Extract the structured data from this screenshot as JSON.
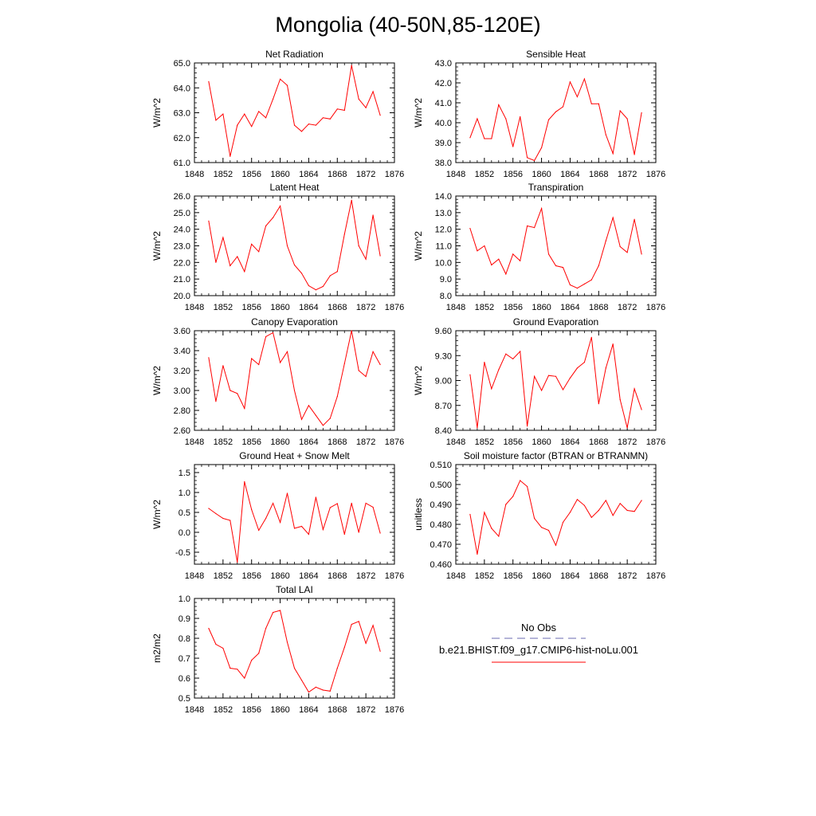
{
  "title": "Mongolia (40-50N,85-120E)",
  "colors": {
    "model": "#ff0000",
    "obs": "#6a6ab0",
    "axis": "#000000"
  },
  "legend": {
    "obs_label": "No Obs",
    "model_label": "b.e21.BHIST.f09_g17.CMIP6-hist-noLu.001"
  },
  "chart_data": [
    {
      "type": "line",
      "title": "Net Radiation",
      "ylabel": "W/m^2",
      "xlim": [
        1848,
        1876
      ],
      "xticks": [
        1848,
        1852,
        1856,
        1860,
        1864,
        1868,
        1872,
        1876
      ],
      "ylim": [
        61.0,
        65.0
      ],
      "yticks": [
        61.0,
        62.0,
        63.0,
        64.0,
        65.0
      ],
      "ytick_labels": [
        "61.0",
        "62.0",
        "63.0",
        "64.0",
        "65.0"
      ],
      "x": [
        1850,
        1851,
        1852,
        1853,
        1854,
        1855,
        1856,
        1857,
        1858,
        1859,
        1860,
        1861,
        1862,
        1863,
        1864,
        1865,
        1866,
        1867,
        1868,
        1869,
        1870,
        1871,
        1872,
        1873,
        1874
      ],
      "series": [
        {
          "values": [
            64.25,
            62.7,
            62.95,
            61.25,
            62.5,
            62.95,
            62.45,
            63.05,
            62.8,
            63.55,
            64.35,
            64.1,
            62.5,
            62.25,
            62.55,
            62.5,
            62.8,
            62.75,
            63.15,
            63.1,
            64.9,
            63.55,
            63.2,
            63.85,
            62.9
          ]
        }
      ],
      "grid": false
    },
    {
      "type": "line",
      "title": "Sensible Heat",
      "ylabel": "W/m^2",
      "xlim": [
        1848,
        1876
      ],
      "xticks": [
        1848,
        1852,
        1856,
        1860,
        1864,
        1868,
        1872,
        1876
      ],
      "ylim": [
        38.0,
        43.0
      ],
      "yticks": [
        38.0,
        39.0,
        40.0,
        41.0,
        42.0,
        43.0
      ],
      "ytick_labels": [
        "38.0",
        "39.0",
        "40.0",
        "41.0",
        "42.0",
        "43.0"
      ],
      "x": [
        1850,
        1851,
        1852,
        1853,
        1854,
        1855,
        1856,
        1857,
        1858,
        1859,
        1860,
        1861,
        1862,
        1863,
        1864,
        1865,
        1866,
        1867,
        1868,
        1869,
        1870,
        1871,
        1872,
        1873,
        1874
      ],
      "series": [
        {
          "values": [
            39.25,
            40.2,
            39.2,
            39.2,
            40.9,
            40.2,
            38.8,
            40.3,
            38.25,
            38.1,
            38.75,
            40.15,
            40.55,
            40.8,
            42.05,
            41.3,
            42.2,
            40.95,
            40.95,
            39.4,
            38.45,
            40.6,
            40.2,
            38.4,
            40.5
          ]
        }
      ],
      "grid": false
    },
    {
      "type": "line",
      "title": "Latent Heat",
      "ylabel": "W/m^2",
      "xlim": [
        1848,
        1876
      ],
      "xticks": [
        1848,
        1852,
        1856,
        1860,
        1864,
        1868,
        1872,
        1876
      ],
      "ylim": [
        20.0,
        26.0
      ],
      "yticks": [
        20.0,
        21.0,
        22.0,
        23.0,
        24.0,
        25.0,
        26.0
      ],
      "ytick_labels": [
        "20.0",
        "21.0",
        "22.0",
        "23.0",
        "24.0",
        "25.0",
        "26.0"
      ],
      "x": [
        1850,
        1851,
        1852,
        1853,
        1854,
        1855,
        1856,
        1857,
        1858,
        1859,
        1860,
        1861,
        1862,
        1863,
        1864,
        1865,
        1866,
        1867,
        1868,
        1869,
        1870,
        1871,
        1872,
        1873,
        1874
      ],
      "series": [
        {
          "values": [
            24.5,
            22.0,
            23.5,
            21.8,
            22.35,
            21.45,
            23.1,
            22.65,
            24.2,
            24.7,
            25.4,
            23.0,
            21.85,
            21.35,
            20.6,
            20.35,
            20.55,
            21.2,
            21.45,
            23.7,
            25.75,
            23.0,
            22.2,
            24.85,
            22.4
          ]
        }
      ],
      "grid": false
    },
    {
      "type": "line",
      "title": "Transpiration",
      "ylabel": "W/m^2",
      "xlim": [
        1848,
        1876
      ],
      "xticks": [
        1848,
        1852,
        1856,
        1860,
        1864,
        1868,
        1872,
        1876
      ],
      "ylim": [
        8.0,
        14.0
      ],
      "yticks": [
        8.0,
        9.0,
        10.0,
        11.0,
        12.0,
        13.0,
        14.0
      ],
      "ytick_labels": [
        "8.0",
        "9.0",
        "10.0",
        "11.0",
        "12.0",
        "13.0",
        "14.0"
      ],
      "x": [
        1850,
        1851,
        1852,
        1853,
        1854,
        1855,
        1856,
        1857,
        1858,
        1859,
        1860,
        1861,
        1862,
        1863,
        1864,
        1865,
        1866,
        1867,
        1868,
        1869,
        1870,
        1871,
        1872,
        1873,
        1874
      ],
      "series": [
        {
          "values": [
            12.05,
            10.7,
            11.0,
            9.85,
            10.2,
            9.3,
            10.5,
            10.1,
            12.2,
            12.1,
            13.25,
            10.5,
            9.8,
            9.7,
            8.65,
            8.45,
            8.7,
            8.95,
            9.8,
            11.3,
            12.7,
            10.95,
            10.6,
            12.6,
            10.5
          ]
        }
      ],
      "grid": false
    },
    {
      "type": "line",
      "title": "Canopy Evaporation",
      "ylabel": "W/m^2",
      "xlim": [
        1848,
        1876
      ],
      "xticks": [
        1848,
        1852,
        1856,
        1860,
        1864,
        1868,
        1872,
        1876
      ],
      "ylim": [
        2.6,
        3.6
      ],
      "yticks": [
        2.6,
        2.8,
        3.0,
        3.2,
        3.4,
        3.6
      ],
      "ytick_labels": [
        "2.60",
        "2.80",
        "3.00",
        "3.20",
        "3.40",
        "3.60"
      ],
      "x": [
        1850,
        1851,
        1852,
        1853,
        1854,
        1855,
        1856,
        1857,
        1858,
        1859,
        1860,
        1861,
        1862,
        1863,
        1864,
        1865,
        1866,
        1867,
        1868,
        1869,
        1870,
        1871,
        1872,
        1873,
        1874
      ],
      "series": [
        {
          "values": [
            3.33,
            2.89,
            3.25,
            3.0,
            2.97,
            2.82,
            3.32,
            3.26,
            3.54,
            3.58,
            3.28,
            3.39,
            3.0,
            2.71,
            2.85,
            2.75,
            2.65,
            2.72,
            2.94,
            3.27,
            3.6,
            3.2,
            3.14,
            3.39,
            3.26
          ]
        }
      ],
      "grid": false
    },
    {
      "type": "line",
      "title": "Ground Evaporation",
      "ylabel": "W/m^2",
      "xlim": [
        1848,
        1876
      ],
      "xticks": [
        1848,
        1852,
        1856,
        1860,
        1864,
        1868,
        1872,
        1876
      ],
      "ylim": [
        8.4,
        9.6
      ],
      "yticks": [
        8.4,
        8.7,
        9.0,
        9.3,
        9.6
      ],
      "ytick_labels": [
        "8.40",
        "8.70",
        "9.00",
        "9.30",
        "9.60"
      ],
      "x": [
        1850,
        1851,
        1852,
        1853,
        1854,
        1855,
        1856,
        1857,
        1858,
        1859,
        1860,
        1861,
        1862,
        1863,
        1864,
        1865,
        1866,
        1867,
        1868,
        1869,
        1870,
        1871,
        1872,
        1873,
        1874
      ],
      "series": [
        {
          "values": [
            9.07,
            8.43,
            9.22,
            8.9,
            9.13,
            9.32,
            9.26,
            9.35,
            8.45,
            9.05,
            8.88,
            9.06,
            9.05,
            8.89,
            9.03,
            9.15,
            9.22,
            9.52,
            8.72,
            9.15,
            9.44,
            8.77,
            8.43,
            8.9,
            8.65
          ]
        }
      ],
      "grid": false
    },
    {
      "type": "line",
      "title": "Ground Heat + Snow Melt",
      "ylabel": "W/m^2",
      "xlim": [
        1848,
        1876
      ],
      "xticks": [
        1848,
        1852,
        1856,
        1860,
        1864,
        1868,
        1872,
        1876
      ],
      "ylim": [
        -0.8,
        1.7
      ],
      "yticks": [
        -0.5,
        0.0,
        0.5,
        1.0,
        1.5
      ],
      "ytick_labels": [
        "-0.5",
        "0.0",
        "0.5",
        "1.0",
        "1.5"
      ],
      "x": [
        1850,
        1851,
        1852,
        1853,
        1854,
        1855,
        1856,
        1857,
        1858,
        1859,
        1860,
        1861,
        1862,
        1863,
        1864,
        1865,
        1866,
        1867,
        1868,
        1869,
        1870,
        1871,
        1872,
        1873,
        1874
      ],
      "series": [
        {
          "values": [
            0.6,
            0.47,
            0.35,
            0.3,
            -0.75,
            1.27,
            0.57,
            0.05,
            0.35,
            0.73,
            0.25,
            0.98,
            0.1,
            0.15,
            -0.05,
            0.88,
            0.07,
            0.62,
            0.72,
            -0.05,
            0.73,
            0.0,
            0.73,
            0.63,
            -0.02
          ]
        }
      ],
      "grid": false
    },
    {
      "type": "line",
      "title": "Soil moisture factor (BTRAN or BTRANMN)",
      "ylabel": "unitless",
      "xlim": [
        1848,
        1876
      ],
      "xticks": [
        1848,
        1852,
        1856,
        1860,
        1864,
        1868,
        1872,
        1876
      ],
      "ylim": [
        0.46,
        0.51
      ],
      "yticks": [
        0.46,
        0.47,
        0.48,
        0.49,
        0.5,
        0.51
      ],
      "ytick_labels": [
        "0.460",
        "0.470",
        "0.480",
        "0.490",
        "0.500",
        "0.510"
      ],
      "x": [
        1850,
        1851,
        1852,
        1853,
        1854,
        1855,
        1856,
        1857,
        1858,
        1859,
        1860,
        1861,
        1862,
        1863,
        1864,
        1865,
        1866,
        1867,
        1868,
        1869,
        1870,
        1871,
        1872,
        1873,
        1874
      ],
      "series": [
        {
          "values": [
            0.485,
            0.465,
            0.486,
            0.478,
            0.474,
            0.49,
            0.494,
            0.502,
            0.499,
            0.483,
            0.4785,
            0.477,
            0.4695,
            0.481,
            0.486,
            0.4925,
            0.4895,
            0.4835,
            0.487,
            0.492,
            0.4845,
            0.4905,
            0.487,
            0.4865,
            0.492
          ]
        }
      ],
      "grid": false
    },
    {
      "type": "line",
      "title": "Total LAI",
      "ylabel": "m2/m2",
      "xlim": [
        1848,
        1876
      ],
      "xticks": [
        1848,
        1852,
        1856,
        1860,
        1864,
        1868,
        1872,
        1876
      ],
      "ylim": [
        0.5,
        1.0
      ],
      "yticks": [
        0.5,
        0.6,
        0.7,
        0.8,
        0.9,
        1.0
      ],
      "ytick_labels": [
        "0.5",
        "0.6",
        "0.7",
        "0.8",
        "0.9",
        "1.0"
      ],
      "x": [
        1850,
        1851,
        1852,
        1853,
        1854,
        1855,
        1856,
        1857,
        1858,
        1859,
        1860,
        1861,
        1862,
        1863,
        1864,
        1865,
        1866,
        1867,
        1868,
        1869,
        1870,
        1871,
        1872,
        1873,
        1874
      ],
      "series": [
        {
          "values": [
            0.85,
            0.77,
            0.75,
            0.65,
            0.645,
            0.6,
            0.69,
            0.725,
            0.85,
            0.93,
            0.94,
            0.78,
            0.65,
            0.59,
            0.53,
            0.555,
            0.54,
            0.535,
            0.65,
            0.755,
            0.87,
            0.885,
            0.775,
            0.865,
            0.735
          ]
        }
      ],
      "grid": false
    }
  ]
}
